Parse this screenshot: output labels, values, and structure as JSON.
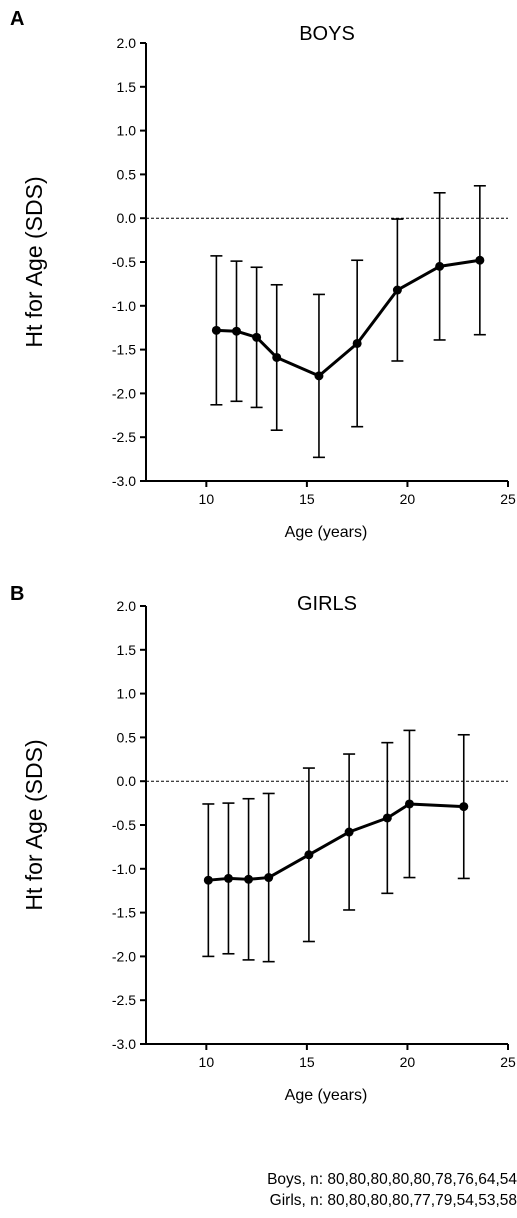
{
  "chart_data": [
    {
      "type": "line",
      "panel": "A",
      "title": "BOYS",
      "xlabel": "Age (years)",
      "ylabel": "Ht for Age (SDS)",
      "xlim": [
        7,
        25
      ],
      "ylim": [
        -3.0,
        2.0
      ],
      "x_ticks": [
        "10",
        "15",
        "20",
        "25"
      ],
      "y_ticks": [
        "2.0",
        "1.5",
        "1.0",
        "0.5",
        "0.0",
        "-0.5",
        "-1.0",
        "-1.5",
        "-2.0",
        "-2.5",
        "-3.0"
      ],
      "reference_line": 0.0,
      "error_bars": true,
      "x": [
        10.5,
        11.5,
        12.5,
        13.5,
        15.6,
        17.5,
        19.5,
        21.6,
        23.6
      ],
      "y": [
        -1.28,
        -1.29,
        -1.36,
        -1.59,
        -1.8,
        -1.43,
        -0.82,
        -0.55,
        -0.48
      ],
      "err": [
        0.85,
        0.8,
        0.8,
        0.83,
        0.93,
        0.95,
        0.81,
        0.84,
        0.85
      ]
    },
    {
      "type": "line",
      "panel": "B",
      "title": "GIRLS",
      "xlabel": "Age (years)",
      "ylabel": "Ht for Age (SDS)",
      "xlim": [
        7,
        25
      ],
      "ylim": [
        -3.0,
        2.0
      ],
      "x_ticks": [
        "10",
        "15",
        "20",
        "25"
      ],
      "y_ticks": [
        "2.0",
        "1.5",
        "1.0",
        "0.5",
        "0.0",
        "-0.5",
        "-1.0",
        "-1.5",
        "-2.0",
        "-2.5",
        "-3.0"
      ],
      "reference_line": 0.0,
      "error_bars": true,
      "x": [
        10.1,
        11.1,
        12.1,
        13.1,
        15.1,
        17.1,
        19.0,
        20.1,
        22.8
      ],
      "y": [
        -1.13,
        -1.11,
        -1.12,
        -1.1,
        -0.84,
        -0.58,
        -0.42,
        -0.26,
        -0.29
      ],
      "err": [
        0.87,
        0.86,
        0.92,
        0.96,
        0.99,
        0.89,
        0.86,
        0.84,
        0.82
      ]
    }
  ],
  "footnote": {
    "boys": "Boys, n: 80,80,80,80,80,78,76,64,54",
    "girls": "Girls, n: 80,80,80,80,77,79,54,53,58"
  }
}
